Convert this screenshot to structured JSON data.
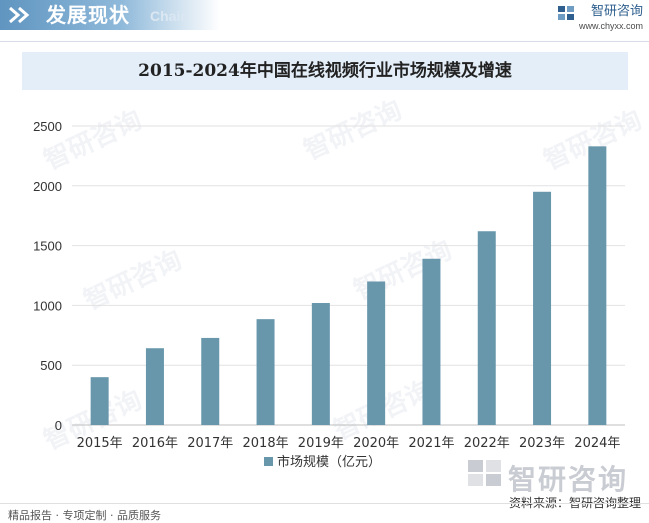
{
  "header": {
    "title": "发展现状",
    "subtitle": "Chain",
    "brand_name": "智研咨询",
    "brand_url": "www.chyxx.com"
  },
  "watermark": "智研咨询",
  "chart_data": {
    "type": "bar",
    "title": "2015-2024年中国在线视频行业市场规模及增速",
    "categories": [
      "2015年",
      "2016年",
      "2017年",
      "2018年",
      "2019年",
      "2020年",
      "2021年",
      "2022年",
      "2023年",
      "2024年"
    ],
    "series": [
      {
        "name": "市场规模（亿元）",
        "values": [
          400,
          642,
          728,
          885,
          1020,
          1200,
          1390,
          1620,
          1950,
          2330
        ]
      }
    ],
    "ylim": [
      0,
      2500
    ],
    "yticks": [
      0,
      500,
      1000,
      1500,
      2000,
      2500
    ],
    "grid": true,
    "legend": "bottom",
    "bar_color": "#6897ac"
  },
  "footer": {
    "left": "精品报告 · 专项定制 · 品质服务",
    "source": "资料来源：智研咨询整理",
    "logo_text": "智研咨询"
  }
}
